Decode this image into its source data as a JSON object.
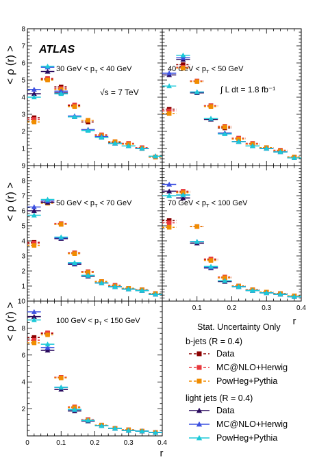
{
  "experiment_label": "ATLAS",
  "energy_label": "√s = 7 TeV",
  "lumi_label": "∫ L dt = 1.8 fb⁻¹",
  "stat_note": "Stat. Uncertainty Only",
  "x_axis_label": "r",
  "y_axis_label": "< ρ (r) >",
  "legend": {
    "bjets_header": "b-jets (R = 0.4)",
    "light_header": "light jets (R = 0.4)",
    "entries": [
      {
        "group": "b",
        "name": "Data",
        "color": "#8b0000",
        "marker": "square",
        "dashed": true
      },
      {
        "group": "b",
        "name": "MC@NLO+Herwig",
        "color": "#e8383d",
        "marker": "square",
        "dashed": true
      },
      {
        "group": "b",
        "name": "PowHeg+Pythia",
        "color": "#f08c00",
        "marker": "square",
        "dashed": true
      },
      {
        "group": "l",
        "name": "Data",
        "color": "#2a0a5e",
        "marker": "triangle",
        "dashed": false
      },
      {
        "group": "l",
        "name": "MC@NLO+Herwig",
        "color": "#3c50e0",
        "marker": "triangle",
        "dashed": false
      },
      {
        "group": "l",
        "name": "PowHeg+Pythia",
        "color": "#1cc8d8",
        "marker": "triangle",
        "dashed": false
      }
    ]
  },
  "chart_data": [
    {
      "type": "scatter",
      "title": "30 GeV < pT < 40 GeV",
      "xlim": [
        0,
        0.4
      ],
      "ylim": [
        0,
        8
      ],
      "yticks": [
        "1",
        "2",
        "3",
        "4",
        "5",
        "6",
        "7",
        "8"
      ],
      "xticks": [],
      "x": [
        0.02,
        0.06,
        0.1,
        0.14,
        0.18,
        0.22,
        0.26,
        0.3,
        0.34,
        0.38
      ],
      "series": [
        {
          "name": "b-jets Data",
          "values": [
            2.8,
            5.05,
            4.6,
            3.5,
            2.55,
            1.75,
            1.35,
            1.25,
            1.0,
            0.5
          ]
        },
        {
          "name": "b-jets MC@NLO+Herwig",
          "values": [
            2.7,
            5.1,
            4.5,
            3.55,
            2.65,
            1.8,
            1.4,
            1.3,
            1.05,
            0.5
          ]
        },
        {
          "name": "b-jets PowHeg+Pythia",
          "values": [
            2.55,
            5.0,
            4.45,
            3.45,
            2.65,
            1.75,
            1.4,
            1.25,
            1.0,
            0.5
          ]
        },
        {
          "name": "light jets Data",
          "values": [
            4.2,
            5.5,
            4.25,
            2.85,
            2.1,
            1.65,
            1.3,
            1.15,
            1.0,
            0.55
          ]
        },
        {
          "name": "light jets MC@NLO+Herwig",
          "values": [
            4.45,
            5.75,
            4.35,
            2.9,
            2.1,
            1.7,
            1.3,
            1.15,
            1.0,
            0.55
          ]
        },
        {
          "name": "light jets PowHeg+Pythia",
          "values": [
            4.0,
            5.8,
            4.2,
            2.85,
            2.05,
            1.65,
            1.3,
            1.15,
            1.0,
            0.55
          ]
        }
      ]
    },
    {
      "type": "scatter",
      "title": "40 GeV < pT < 50 GeV",
      "xlim": [
        0,
        0.4
      ],
      "ylim": [
        0,
        8
      ],
      "yticks": [],
      "xticks": [],
      "x": [
        0.02,
        0.06,
        0.1,
        0.14,
        0.18,
        0.22,
        0.26,
        0.3,
        0.34,
        0.38
      ],
      "series": [
        {
          "name": "b-jets Data",
          "values": [
            3.3,
            5.9,
            4.95,
            3.5,
            2.2,
            1.6,
            1.25,
            1.05,
            0.85,
            0.5
          ]
        },
        {
          "name": "b-jets MC@NLO+Herwig",
          "values": [
            3.2,
            5.75,
            4.95,
            3.5,
            2.3,
            1.6,
            1.3,
            1.05,
            0.9,
            0.5
          ]
        },
        {
          "name": "b-jets PowHeg+Pythia",
          "values": [
            3.05,
            5.7,
            4.9,
            3.45,
            2.25,
            1.55,
            1.25,
            1.05,
            0.85,
            0.5
          ]
        },
        {
          "name": "light jets Data",
          "values": [
            5.3,
            6.2,
            4.25,
            2.7,
            1.9,
            1.4,
            1.15,
            1.0,
            0.8,
            0.45
          ]
        },
        {
          "name": "light jets MC@NLO+Herwig",
          "values": [
            5.4,
            6.3,
            4.3,
            2.75,
            1.9,
            1.4,
            1.15,
            1.0,
            0.8,
            0.45
          ]
        },
        {
          "name": "light jets PowHeg+Pythia",
          "values": [
            4.65,
            6.45,
            4.3,
            2.75,
            1.85,
            1.4,
            1.15,
            1.0,
            0.8,
            0.45
          ]
        }
      ]
    },
    {
      "type": "scatter",
      "title": "50 GeV < pT < 70 GeV",
      "xlim": [
        0,
        0.4
      ],
      "ylim": [
        0,
        9
      ],
      "yticks": [
        "1",
        "2",
        "3",
        "4",
        "5",
        "6",
        "7",
        "8",
        "9"
      ],
      "xticks": [],
      "x": [
        0.02,
        0.06,
        0.1,
        0.14,
        0.18,
        0.22,
        0.26,
        0.3,
        0.34,
        0.38
      ],
      "series": [
        {
          "name": "b-jets Data",
          "values": [
            3.9,
            6.6,
            5.1,
            3.2,
            1.95,
            1.3,
            1.0,
            0.85,
            0.75,
            0.5
          ]
        },
        {
          "name": "b-jets MC@NLO+Herwig",
          "values": [
            3.85,
            6.6,
            5.15,
            3.2,
            1.95,
            1.3,
            1.05,
            0.85,
            0.75,
            0.5
          ]
        },
        {
          "name": "b-jets PowHeg+Pythia",
          "values": [
            3.7,
            6.5,
            5.1,
            3.15,
            1.9,
            1.3,
            1.0,
            0.85,
            0.75,
            0.5
          ]
        },
        {
          "name": "light jets Data",
          "values": [
            6.0,
            6.55,
            4.15,
            2.45,
            1.65,
            1.2,
            0.95,
            0.8,
            0.7,
            0.45
          ]
        },
        {
          "name": "light jets MC@NLO+Herwig",
          "values": [
            6.25,
            6.65,
            4.2,
            2.5,
            1.7,
            1.2,
            0.95,
            0.8,
            0.7,
            0.45
          ]
        },
        {
          "name": "light jets PowHeg+Pythia",
          "values": [
            5.7,
            6.75,
            4.25,
            2.55,
            1.7,
            1.2,
            0.95,
            0.8,
            0.7,
            0.45
          ]
        }
      ]
    },
    {
      "type": "scatter",
      "title": "70 GeV < pT < 100 GeV",
      "xlim": [
        0,
        0.4
      ],
      "ylim": [
        0,
        9
      ],
      "yticks": [],
      "xticks": [
        "0.1",
        "0.2",
        "0.3",
        "0.4"
      ],
      "x": [
        0.02,
        0.06,
        0.1,
        0.14,
        0.18,
        0.22,
        0.26,
        0.3,
        0.34,
        0.38
      ],
      "series": [
        {
          "name": "b-jets Data",
          "values": [
            5.35,
            7.25,
            4.95,
            2.75,
            1.55,
            1.0,
            0.75,
            0.6,
            0.5,
            0.35
          ]
        },
        {
          "name": "b-jets MC@NLO+Herwig",
          "values": [
            5.2,
            7.3,
            4.95,
            2.8,
            1.6,
            1.0,
            0.75,
            0.6,
            0.5,
            0.35
          ]
        },
        {
          "name": "b-jets PowHeg+Pythia",
          "values": [
            4.9,
            7.2,
            4.95,
            2.7,
            1.55,
            1.0,
            0.75,
            0.6,
            0.5,
            0.35
          ]
        },
        {
          "name": "light jets Data",
          "values": [
            7.3,
            6.85,
            3.85,
            2.2,
            1.3,
            0.95,
            0.7,
            0.55,
            0.45,
            0.3
          ]
        },
        {
          "name": "light jets MC@NLO+Herwig",
          "values": [
            7.75,
            7.05,
            3.95,
            2.25,
            1.35,
            0.95,
            0.7,
            0.55,
            0.45,
            0.3
          ]
        },
        {
          "name": "light jets PowHeg+Pythia",
          "values": [
            7.0,
            7.05,
            3.95,
            2.3,
            1.35,
            0.95,
            0.7,
            0.55,
            0.45,
            0.3
          ]
        }
      ]
    },
    {
      "type": "scatter",
      "title": "100 GeV < pT < 150 GeV",
      "xlim": [
        0,
        0.4
      ],
      "ylim": [
        0,
        10
      ],
      "yticks": [
        "2",
        "4",
        "6",
        "8",
        "10"
      ],
      "xticks": [
        "0",
        "0.1",
        "0.2",
        "0.3",
        "0.4"
      ],
      "x": [
        0.02,
        0.06,
        0.1,
        0.14,
        0.18,
        0.22,
        0.26,
        0.3,
        0.34,
        0.38
      ],
      "series": [
        {
          "name": "b-jets Data",
          "values": [
            7.3,
            7.6,
            4.35,
            2.1,
            1.2,
            0.8,
            0.55,
            0.45,
            0.35,
            0.25
          ]
        },
        {
          "name": "b-jets MC@NLO+Herwig",
          "values": [
            7.1,
            7.65,
            4.35,
            2.15,
            1.2,
            0.8,
            0.55,
            0.45,
            0.35,
            0.25
          ]
        },
        {
          "name": "b-jets PowHeg+Pythia",
          "values": [
            6.9,
            7.5,
            4.3,
            2.1,
            1.15,
            0.8,
            0.55,
            0.45,
            0.35,
            0.25
          ]
        },
        {
          "name": "light jets Data",
          "values": [
            8.85,
            6.35,
            3.45,
            1.85,
            1.1,
            0.75,
            0.55,
            0.4,
            0.35,
            0.25
          ]
        },
        {
          "name": "light jets MC@NLO+Herwig",
          "values": [
            9.2,
            6.55,
            3.6,
            1.95,
            1.15,
            0.75,
            0.55,
            0.4,
            0.35,
            0.25
          ]
        },
        {
          "name": "light jets PowHeg+Pythia",
          "values": [
            8.6,
            6.8,
            3.6,
            1.95,
            1.15,
            0.75,
            0.55,
            0.4,
            0.35,
            0.25
          ]
        }
      ]
    }
  ]
}
